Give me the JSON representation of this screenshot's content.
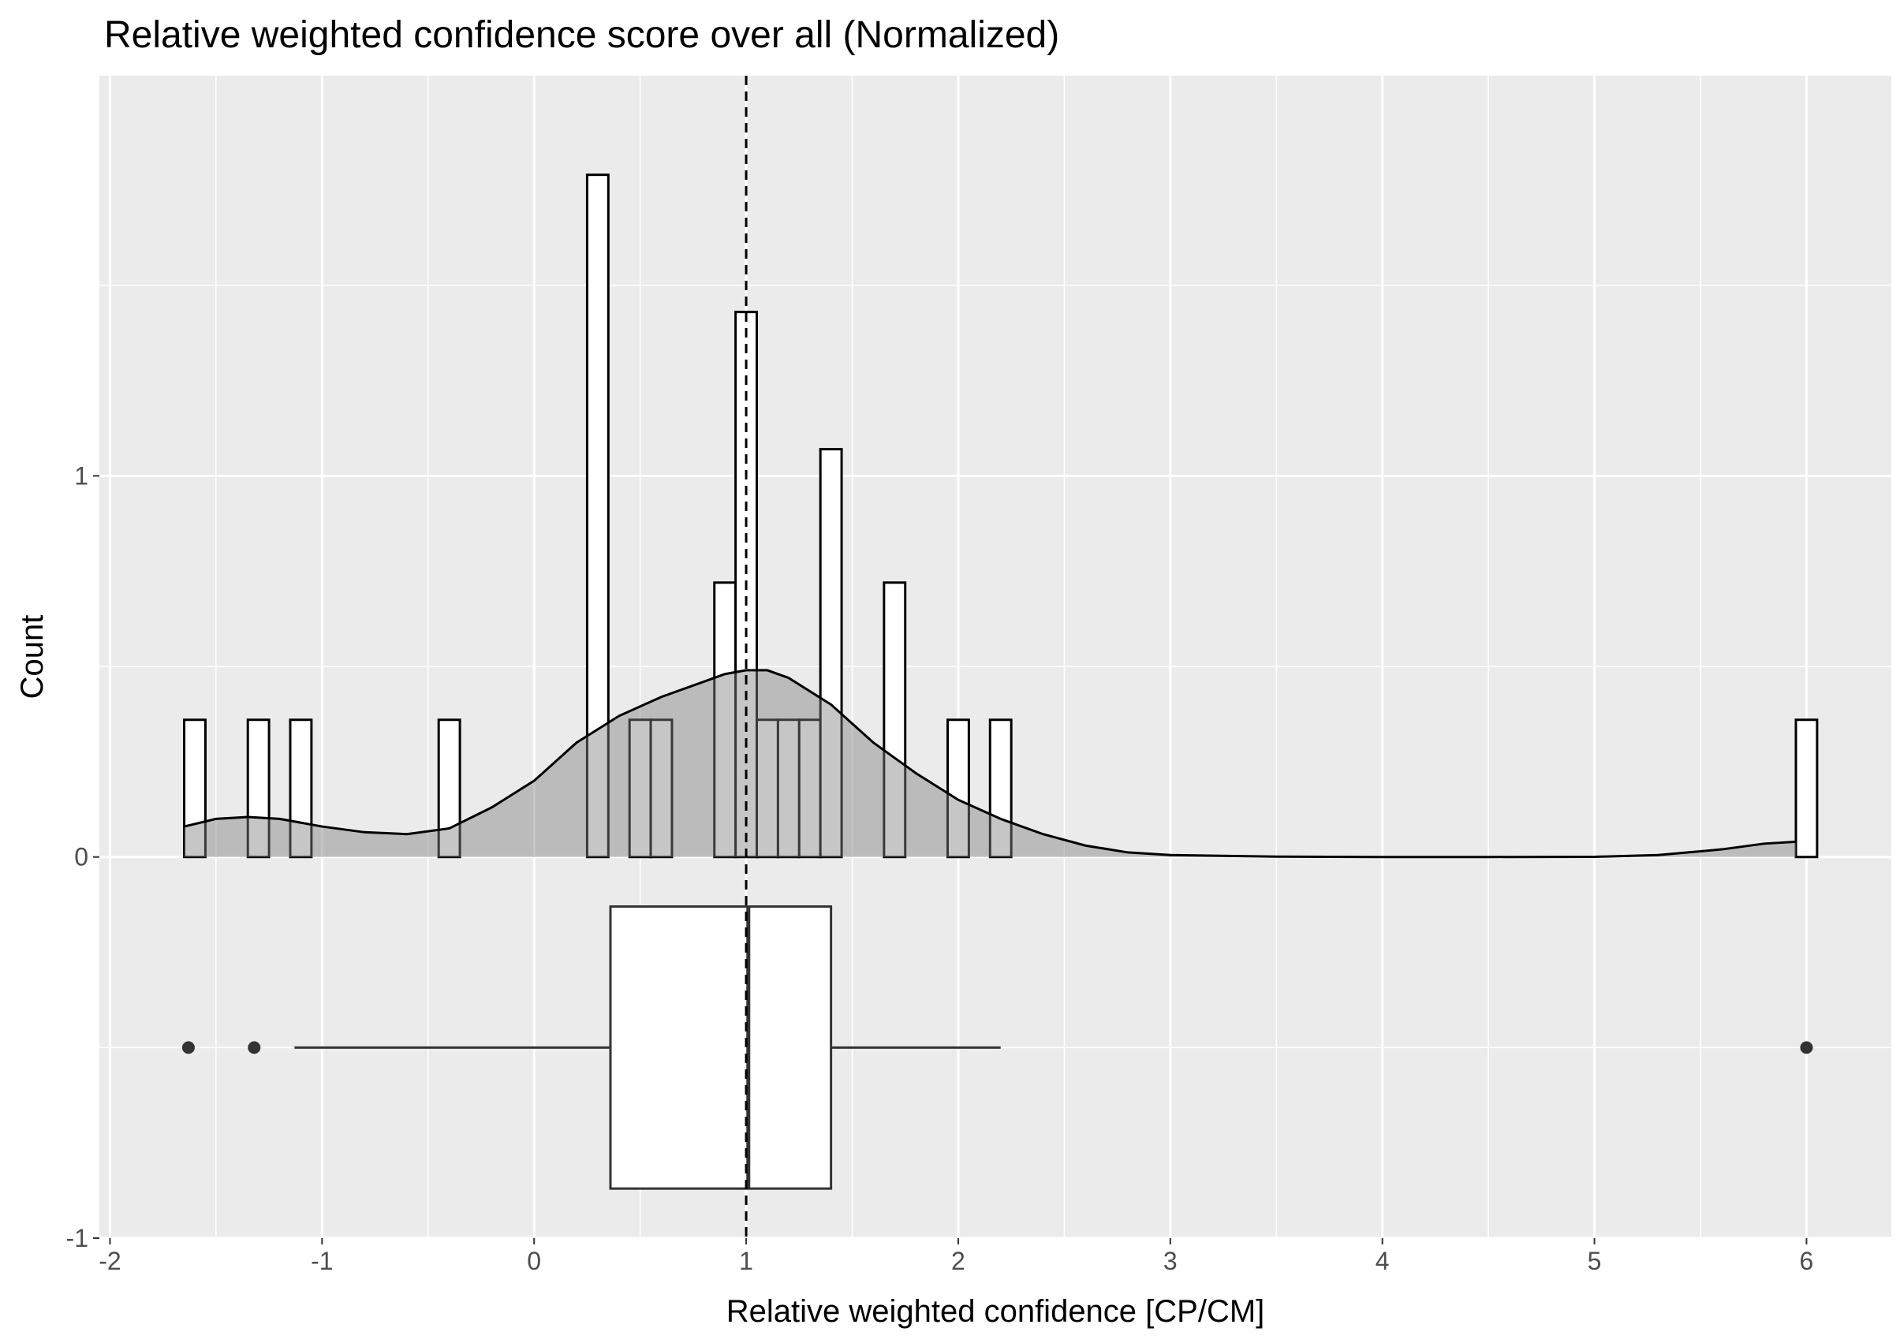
{
  "chart_data": {
    "type": "histogram+density+boxplot",
    "title": "Relative weighted confidence score over all (Normalized)",
    "xlabel": "Relative weighted confidence [CP/CM]",
    "ylabel": "Count",
    "xlim": [
      -2.05,
      6.4
    ],
    "ylim": [
      -1.0,
      2.05
    ],
    "x_ticks": [
      -2,
      -1,
      0,
      1,
      2,
      3,
      4,
      5,
      6
    ],
    "y_ticks": [
      -1,
      0,
      1
    ],
    "grid": true,
    "background": "#ebebeb",
    "reference_line_x": 1.0,
    "histogram": {
      "bins": [
        {
          "x0": -1.65,
          "x1": -1.55,
          "count": 0.36
        },
        {
          "x0": -1.35,
          "x1": -1.25,
          "count": 0.36
        },
        {
          "x0": -1.15,
          "x1": -1.05,
          "count": 0.36
        },
        {
          "x0": -0.45,
          "x1": -0.35,
          "count": 0.36
        },
        {
          "x0": 0.25,
          "x1": 0.35,
          "count": 1.79
        },
        {
          "x0": 0.45,
          "x1": 0.55,
          "count": 0.36
        },
        {
          "x0": 0.55,
          "x1": 0.65,
          "count": 0.36
        },
        {
          "x0": 0.85,
          "x1": 0.95,
          "count": 0.72
        },
        {
          "x0": 0.95,
          "x1": 1.05,
          "count": 1.43
        },
        {
          "x0": 1.05,
          "x1": 1.15,
          "count": 0.36
        },
        {
          "x0": 1.15,
          "x1": 1.25,
          "count": 0.36
        },
        {
          "x0": 1.25,
          "x1": 1.35,
          "count": 0.36
        },
        {
          "x0": 1.35,
          "x1": 1.45,
          "count": 1.07
        },
        {
          "x0": 1.65,
          "x1": 1.75,
          "count": 0.72
        },
        {
          "x0": 1.95,
          "x1": 2.05,
          "count": 0.36
        },
        {
          "x0": 2.15,
          "x1": 2.25,
          "count": 0.36
        },
        {
          "x0": 5.95,
          "x1": 6.05,
          "count": 0.36
        }
      ]
    },
    "density": {
      "x": [
        -1.65,
        -1.5,
        -1.35,
        -1.2,
        -1.0,
        -0.8,
        -0.6,
        -0.4,
        -0.2,
        0.0,
        0.2,
        0.4,
        0.6,
        0.8,
        0.9,
        1.0,
        1.1,
        1.2,
        1.4,
        1.6,
        1.8,
        2.0,
        2.2,
        2.4,
        2.6,
        2.8,
        3.0,
        3.5,
        4.0,
        4.5,
        5.0,
        5.3,
        5.6,
        5.8,
        5.95
      ],
      "y": [
        0.08,
        0.1,
        0.105,
        0.1,
        0.08,
        0.065,
        0.06,
        0.075,
        0.13,
        0.2,
        0.3,
        0.37,
        0.42,
        0.46,
        0.48,
        0.49,
        0.49,
        0.47,
        0.4,
        0.3,
        0.22,
        0.15,
        0.1,
        0.06,
        0.03,
        0.012,
        0.005,
        0.001,
        0.0,
        0.0,
        0.0005,
        0.005,
        0.02,
        0.035,
        0.04
      ]
    },
    "boxplot": {
      "y_center": -0.5,
      "half_height": 0.37,
      "q1": 0.36,
      "median": 1.01,
      "q3": 1.4,
      "whisker_low": -1.13,
      "whisker_high": 2.2,
      "outliers": [
        -1.63,
        -1.32,
        6.0
      ]
    }
  }
}
